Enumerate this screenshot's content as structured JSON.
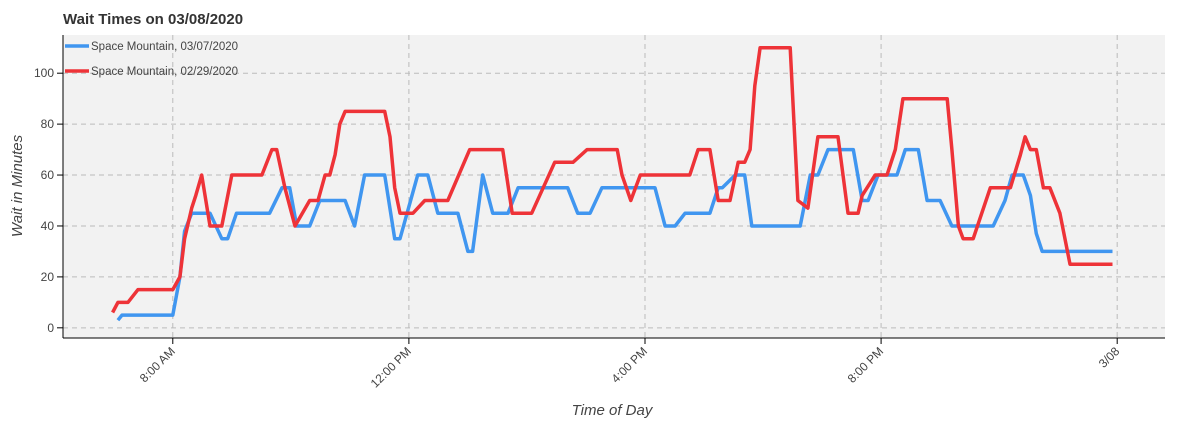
{
  "chart_data": {
    "type": "line",
    "title": "Wait Times on 03/08/2020",
    "xlabel": "Time of Day",
    "ylabel": "Wait in Minutes",
    "xlim": [
      6.14,
      24.81
    ],
    "ylim": [
      -4,
      115
    ],
    "xticks": [
      {
        "value": 8,
        "label": "8:00 AM"
      },
      {
        "value": 12,
        "label": "12:00 PM"
      },
      {
        "value": 16,
        "label": "4:00 PM"
      },
      {
        "value": 20,
        "label": "8:00 PM"
      },
      {
        "value": 24,
        "label": "3/08"
      }
    ],
    "yticks": [
      0,
      20,
      40,
      60,
      80,
      100
    ],
    "grid": true,
    "legend": "top_left",
    "series": [
      {
        "name": "Space Mountain, 03/07/2020",
        "color": "#4096f0",
        "x": [
          7.07,
          7.14,
          8.0,
          8.12,
          8.2,
          8.32,
          8.63,
          8.83,
          8.93,
          9.08,
          9.64,
          9.85,
          9.98,
          10.1,
          10.32,
          10.49,
          10.92,
          11.08,
          11.25,
          11.59,
          11.76,
          11.85,
          12.15,
          12.32,
          12.49,
          12.83,
          13.0,
          13.08,
          13.25,
          13.42,
          13.68,
          13.85,
          14.69,
          14.86,
          15.07,
          15.27,
          16.17,
          16.34,
          16.51,
          16.68,
          17.1,
          17.24,
          17.31,
          17.53,
          17.69,
          17.81,
          18.63,
          18.8,
          18.93,
          19.1,
          19.53,
          19.68,
          19.78,
          19.95,
          20.27,
          20.41,
          20.63,
          20.78,
          21.0,
          21.2,
          21.9,
          22.1,
          22.22,
          22.41,
          22.53,
          22.63,
          22.73,
          23.92
        ],
        "values": [
          3,
          5,
          5,
          20,
          38,
          45,
          45,
          35,
          35,
          45,
          45,
          55,
          55,
          40,
          40,
          50,
          50,
          40,
          60,
          60,
          35,
          35,
          60,
          60,
          45,
          45,
          30,
          30,
          60,
          45,
          45,
          55,
          55,
          45,
          45,
          55,
          55,
          40,
          40,
          45,
          45,
          55,
          55,
          60,
          60,
          40,
          40,
          60,
          60,
          70,
          70,
          50,
          50,
          60,
          60,
          70,
          70,
          50,
          50,
          40,
          40,
          50,
          60,
          60,
          52,
          37,
          30,
          30
        ]
      },
      {
        "name": "Space Mountain, 02/29/2020",
        "color": "#ee3338",
        "x": [
          6.98,
          7.07,
          7.24,
          7.41,
          8.0,
          8.12,
          8.2,
          8.32,
          8.39,
          8.49,
          8.63,
          8.83,
          9.0,
          9.51,
          9.68,
          9.76,
          9.9,
          10.07,
          10.32,
          10.46,
          10.58,
          10.66,
          10.75,
          10.83,
          10.92,
          11.59,
          11.68,
          11.76,
          11.85,
          12.07,
          12.27,
          12.66,
          13.03,
          13.59,
          13.75,
          14.08,
          14.47,
          14.78,
          15.02,
          15.53,
          15.61,
          15.76,
          15.92,
          16.76,
          16.9,
          17.1,
          17.24,
          17.44,
          17.58,
          17.69,
          17.78,
          17.86,
          17.95,
          18.46,
          18.59,
          18.76,
          18.93,
          19.27,
          19.44,
          19.61,
          19.68,
          19.9,
          20.1,
          20.24,
          20.37,
          21.12,
          21.2,
          21.31,
          21.39,
          21.56,
          21.85,
          22.19,
          22.36,
          22.44,
          22.53,
          22.63,
          22.75,
          22.86,
          23.03,
          23.2,
          23.92
        ],
        "values": [
          6,
          10,
          10,
          15,
          15,
          20,
          35,
          47,
          52,
          60,
          40,
          40,
          60,
          60,
          70,
          70,
          55,
          40,
          50,
          50,
          60,
          60,
          68,
          80,
          85,
          85,
          75,
          55,
          45,
          45,
          50,
          50,
          70,
          70,
          45,
          45,
          65,
          65,
          70,
          70,
          60,
          50,
          60,
          60,
          70,
          70,
          50,
          50,
          65,
          65,
          70,
          95,
          110,
          110,
          50,
          47,
          75,
          75,
          45,
          45,
          52,
          60,
          60,
          70,
          90,
          90,
          70,
          40,
          35,
          35,
          55,
          55,
          68,
          75,
          70,
          70,
          55,
          55,
          45,
          25,
          25
        ]
      }
    ]
  }
}
